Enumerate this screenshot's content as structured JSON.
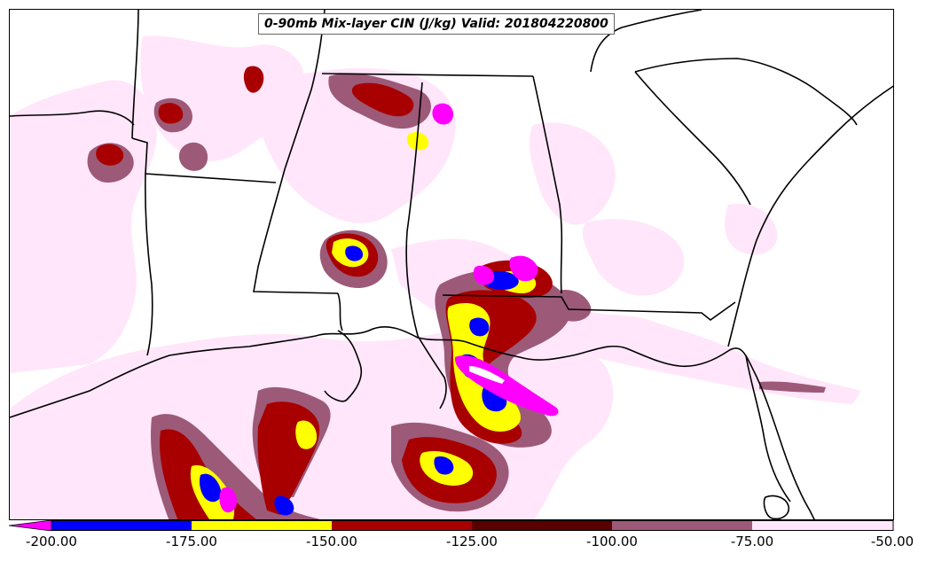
{
  "map": {
    "title": "0-90mb Mix-layer CIN (J/kg) Valid: 201804220800",
    "variable": "0-90mb Mix-layer CIN",
    "units": "J/kg",
    "valid_time": "201804220800"
  },
  "colorbar": {
    "labels": [
      "-200.00",
      "-175.00",
      "-150.00",
      "-125.00",
      "-100.00",
      "-75.00",
      "-50.00"
    ],
    "bins": [
      {
        "range": "< -200",
        "color": "#ff00ff"
      },
      {
        "range": "-200 to -175",
        "color": "#0000ff"
      },
      {
        "range": "-175 to -150",
        "color": "#ffff00"
      },
      {
        "range": "-150 to -125",
        "color": "#a80000"
      },
      {
        "range": "-125 to -100",
        "color": "#5a0000"
      },
      {
        "range": "-100 to -75",
        "color": "#9c5a78"
      },
      {
        "range": "-75 to -50",
        "color": "#ffe6fa"
      }
    ]
  },
  "colors": {
    "magenta": "#ff00ff",
    "blue": "#0000ff",
    "yellow": "#ffff00",
    "red": "#a80000",
    "dark_red": "#5a0000",
    "mauve": "#9c5a78",
    "pale_pink": "#ffe6fa",
    "boundary": "#000000"
  }
}
